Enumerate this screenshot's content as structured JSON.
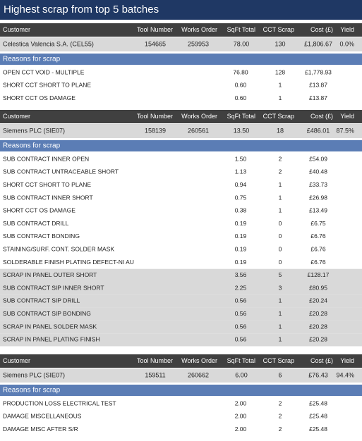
{
  "title": "Highest scrap from top 5 batches",
  "columns": [
    "Customer",
    "Tool Number",
    "Works Order",
    "SqFt Total",
    "CCT Scrap",
    "Cost (£)",
    "Yield"
  ],
  "reasons_heading": "Reasons for scrap",
  "batches": [
    {
      "summary": [
        "Celestica Valencia S.A. (CEL55)",
        "154665",
        "259953",
        "78.00",
        "130",
        "£1,806.67",
        "0.0%"
      ],
      "reasons": [
        {
          "reason": "OPEN CCT VOID - MULTIPLE",
          "sqft": "76.80",
          "cct": "128",
          "cost": "£1,778.93"
        },
        {
          "reason": "SHORT CCT SHORT TO PLANE",
          "sqft": "0.60",
          "cct": "1",
          "cost": "£13.87"
        },
        {
          "reason": "SHORT CCT OS DAMAGE",
          "sqft": "0.60",
          "cct": "1",
          "cost": "£13.87"
        }
      ]
    },
    {
      "summary": [
        "Siemens PLC (SIE07)",
        "158139",
        "260561",
        "13.50",
        "18",
        "£486.01",
        "87.5%"
      ],
      "reasons": [
        {
          "reason": "SUB CONTRACT INNER OPEN",
          "sqft": "1.50",
          "cct": "2",
          "cost": "£54.09"
        },
        {
          "reason": "SUB CONTRACT UNTRACEABLE SHORT",
          "sqft": "1.13",
          "cct": "2",
          "cost": "£40.48"
        },
        {
          "reason": "SHORT CCT SHORT TO PLANE",
          "sqft": "0.94",
          "cct": "1",
          "cost": "£33.73"
        },
        {
          "reason": "SUB CONTRACT INNER SHORT",
          "sqft": "0.75",
          "cct": "1",
          "cost": "£26.98"
        },
        {
          "reason": "SHORT CCT OS DAMAGE",
          "sqft": "0.38",
          "cct": "1",
          "cost": "£13.49"
        },
        {
          "reason": "SUB CONTRACT DRILL",
          "sqft": "0.19",
          "cct": "0",
          "cost": "£6.75"
        },
        {
          "reason": "SUB CONTRACT BONDING",
          "sqft": "0.19",
          "cct": "0",
          "cost": "£6.76"
        },
        {
          "reason": "STAINING/SURF. CONT. SOLDER MASK",
          "sqft": "0.19",
          "cct": "0",
          "cost": "£6.76"
        },
        {
          "reason": "SOLDERABLE FINISH PLATING DEFECT-NI AU",
          "sqft": "0.19",
          "cct": "0",
          "cost": "£6.76"
        },
        {
          "reason": "SCRAP IN PANEL OUTER SHORT",
          "sqft": "3.56",
          "cct": "5",
          "cost": "£128.17",
          "shaded": true
        },
        {
          "reason": "SUB CONTRACT SIP INNER SHORT",
          "sqft": "2.25",
          "cct": "3",
          "cost": "£80.95",
          "shaded": true
        },
        {
          "reason": "SUB CONTRACT SIP DRILL",
          "sqft": "0.56",
          "cct": "1",
          "cost": "£20.24",
          "shaded": true
        },
        {
          "reason": "SUB CONTRACT SIP BONDING",
          "sqft": "0.56",
          "cct": "1",
          "cost": "£20.28",
          "shaded": true
        },
        {
          "reason": "SCRAP IN PANEL SOLDER MASK",
          "sqft": "0.56",
          "cct": "1",
          "cost": "£20.28",
          "shaded": true
        },
        {
          "reason": "SCRAP IN PANEL PLATING FINISH",
          "sqft": "0.56",
          "cct": "1",
          "cost": "£20.28",
          "shaded": true
        }
      ]
    },
    {
      "summary": [
        "Siemens PLC (SIE07)",
        "159511",
        "260662",
        "6.00",
        "6",
        "£76.43",
        "94.4%"
      ],
      "reasons": [
        {
          "reason": "PRODUCTION LOSS ELECTRICAL TEST",
          "sqft": "2.00",
          "cct": "2",
          "cost": "£25.48"
        },
        {
          "reason": "DAMAGE MISCELLANEOUS",
          "sqft": "2.00",
          "cct": "2",
          "cost": "£25.48"
        },
        {
          "reason": "DAMAGE MISC AFTER S/R",
          "sqft": "2.00",
          "cct": "2",
          "cost": "£25.48"
        }
      ]
    }
  ]
}
